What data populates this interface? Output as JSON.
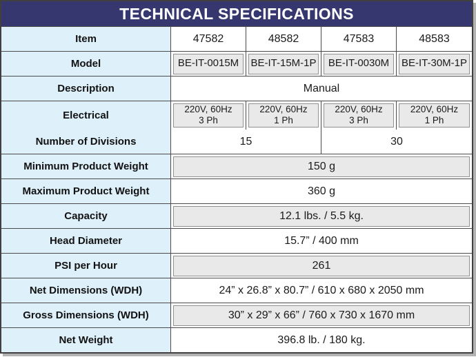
{
  "title": "TECHNICAL SPECIFICATIONS",
  "colors": {
    "header_bg": "#373770",
    "header_text": "#ffffff",
    "label_column_bg": "#def0fa",
    "gray_cell_bg": "#e9e9e9",
    "gray_cell_border": "#909090",
    "grid_border": "#4a4a4a",
    "text": "#1a1a1a"
  },
  "table": {
    "rows": [
      {
        "label": "Item",
        "cells": [
          "47582",
          "48582",
          "47583",
          "48583"
        ]
      },
      {
        "label": "Model",
        "cells": [
          "BE-IT-0015M",
          "BE-IT-15M-1P",
          "BE-IT-0030M",
          "BE-IT-30M-1P"
        ]
      },
      {
        "label": "Description",
        "value": "Manual"
      },
      {
        "label": "Electrical",
        "cells": [
          {
            "l1": "220V, 60Hz",
            "l2": "3 Ph"
          },
          {
            "l1": "220V, 60Hz",
            "l2": "1 Ph"
          },
          {
            "l1": "220V, 60Hz",
            "l2": "3 Ph"
          },
          {
            "l1": "220V, 60Hz",
            "l2": "1 Ph"
          }
        ]
      },
      {
        "label": "Number of Divisions",
        "values": [
          "15",
          "30"
        ]
      },
      {
        "label": "Minimum Product Weight",
        "value": "150 g"
      },
      {
        "label": "Maximum Product Weight",
        "value": "360 g"
      },
      {
        "label": "Capacity",
        "value": "12.1 lbs. / 5.5 kg."
      },
      {
        "label": "Head Diameter",
        "value": "15.7” / 400 mm"
      },
      {
        "label": "PSI per Hour",
        "value": "261"
      },
      {
        "label": "Net Dimensions (WDH)",
        "value": "24” x 26.8” x 80.7” / 610 x 680 x 2050 mm"
      },
      {
        "label": "Gross Dimensions (WDH)",
        "value": "30” x 29” x 66” / 760 x 730 x 1670 mm"
      },
      {
        "label": "Net Weight",
        "value": "396.8 lb. / 180 kg."
      }
    ]
  }
}
